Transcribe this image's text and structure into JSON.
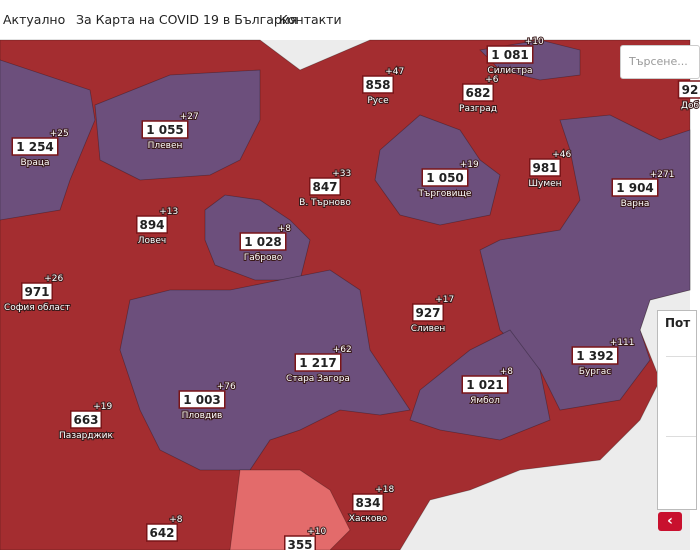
{
  "nav": {
    "items": [
      "Актуално",
      "За Карта на COVID 19 в България",
      "Контакти"
    ]
  },
  "search": {
    "placeholder": "Търсене..."
  },
  "regions": [
    {
      "name": "Враца",
      "value": "1 254",
      "delta": "+25"
    },
    {
      "name": "Плевен",
      "value": "1 055",
      "delta": "+27"
    },
    {
      "name": "Русе",
      "value": "858",
      "delta": "+47"
    },
    {
      "name": "Разград",
      "value": "682",
      "delta": "+6"
    },
    {
      "name": "Силистра",
      "value": "1 081",
      "delta": "+10"
    },
    {
      "name": "Шумен",
      "value": "981",
      "delta": "+46"
    },
    {
      "name": "Варна",
      "value": "1 904",
      "delta": "+271"
    },
    {
      "name": "Доб",
      "value": "92"
    },
    {
      "name": "В. Търново",
      "value": "847",
      "delta": "+33"
    },
    {
      "name": "Търговище",
      "value": "1 050",
      "delta": "+19"
    },
    {
      "name": "Ловеч",
      "value": "894",
      "delta": "+13"
    },
    {
      "name": "Габрово",
      "value": "1 028",
      "delta": "+8"
    },
    {
      "name": "София област",
      "value": "971",
      "delta": "+26"
    },
    {
      "name": "Сливен",
      "value": "927",
      "delta": "+17"
    },
    {
      "name": "Бургас",
      "value": "1 392",
      "delta": "+111"
    },
    {
      "name": "Стара Загора",
      "value": "1 217",
      "delta": "+62"
    },
    {
      "name": "Ямбол",
      "value": "1 021",
      "delta": "+8"
    },
    {
      "name": "Пловдив",
      "value": "1 003",
      "delta": "+76"
    },
    {
      "name": "Пазарджик",
      "value": "663",
      "delta": "+19"
    },
    {
      "name": "Хасково",
      "value": "834",
      "delta": "+18"
    },
    {
      "value": "642",
      "delta": "+8"
    },
    {
      "value": "355",
      "delta": "+10"
    }
  ],
  "side_panel": {
    "title": "Пот"
  },
  "button": {
    "label": "‹"
  }
}
